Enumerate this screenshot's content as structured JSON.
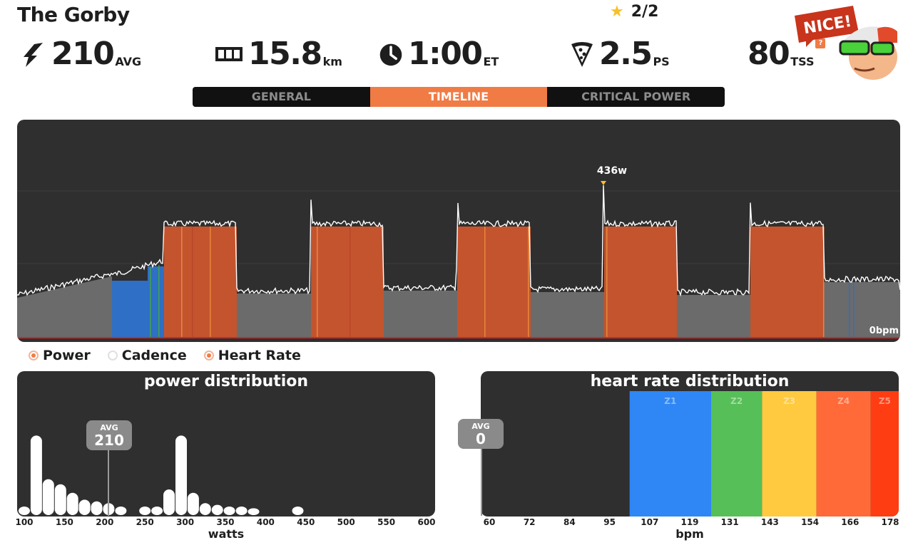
{
  "header": {
    "title": "The Gorby",
    "stars": "2/2",
    "stats": [
      {
        "id": "power",
        "icon": "lightning-icon",
        "value": "210",
        "unit": "AVG"
      },
      {
        "id": "distance",
        "icon": "odometer-icon",
        "value": "15.8",
        "unit": "km"
      },
      {
        "id": "time",
        "icon": "clock-icon",
        "value": "1:00",
        "unit": "ET"
      },
      {
        "id": "pizza",
        "icon": "pizza-icon",
        "value": "2.5",
        "unit": "PS"
      },
      {
        "id": "tss",
        "icon": "",
        "value": "80",
        "unit": "TSS",
        "help": "?"
      }
    ],
    "badge": "NICE!"
  },
  "tabs": [
    {
      "label": "GENERAL",
      "active": false
    },
    {
      "label": "TIMELINE",
      "active": true
    },
    {
      "label": "CRITICAL POWER",
      "active": false
    }
  ],
  "timeline": {
    "peak_label": "436w",
    "right_label": "0bpm",
    "colors": {
      "low": "#6b6b6b",
      "blue": "#2f6fc5",
      "red": "#c4542e",
      "green": "#3fa34a",
      "line": "#ffffff",
      "baseline": "#e02020"
    }
  },
  "legend": [
    {
      "label": "Power",
      "on": true
    },
    {
      "label": "Cadence",
      "on": false
    },
    {
      "label": "Heart Rate",
      "on": true
    }
  ],
  "power_distribution": {
    "title": "power distribution",
    "avg_label": "AVG",
    "avg_value": "210",
    "xlabel": "watts",
    "ticks": [
      "100",
      "150",
      "200",
      "250",
      "300",
      "350",
      "400",
      "450",
      "500",
      "550",
      "600"
    ]
  },
  "hr_distribution": {
    "title": "heart rate distribution",
    "avg_label": "AVG",
    "avg_value": "0",
    "xlabel": "bpm",
    "ticks": [
      "60",
      "72",
      "84",
      "95",
      "107",
      "119",
      "131",
      "143",
      "154",
      "166",
      "178"
    ],
    "zones": [
      {
        "label": "Z1",
        "color": "#2f86f5"
      },
      {
        "label": "Z2",
        "color": "#56bf57"
      },
      {
        "label": "Z3",
        "color": "#ffca3f"
      },
      {
        "label": "Z4",
        "color": "#ff6a38"
      },
      {
        "label": "Z5",
        "color": "#ff3d13"
      }
    ]
  },
  "chart_data": [
    {
      "type": "bar",
      "title": "power distribution",
      "xlabel": "watts",
      "x": [
        100,
        115,
        130,
        145,
        160,
        175,
        190,
        205,
        220,
        250,
        265,
        280,
        295,
        310,
        325,
        340,
        355,
        370,
        385,
        440
      ],
      "values": [
        0.1,
        0.93,
        0.42,
        0.36,
        0.26,
        0.18,
        0.16,
        0.14,
        0.1,
        0.1,
        0.1,
        0.3,
        0.93,
        0.26,
        0.14,
        0.12,
        0.1,
        0.1,
        0.08,
        0.1
      ],
      "xlim": [
        100,
        600
      ]
    },
    {
      "type": "area",
      "title": "heart rate distribution",
      "xlabel": "bpm",
      "series": [
        {
          "name": "Z1",
          "values": [
            95,
            119
          ]
        },
        {
          "name": "Z2",
          "values": [
            119,
            134
          ]
        },
        {
          "name": "Z3",
          "values": [
            134,
            150
          ]
        },
        {
          "name": "Z4",
          "values": [
            150,
            166
          ]
        },
        {
          "name": "Z5",
          "values": [
            166,
            178
          ]
        }
      ],
      "xlim": [
        60,
        178
      ]
    }
  ]
}
